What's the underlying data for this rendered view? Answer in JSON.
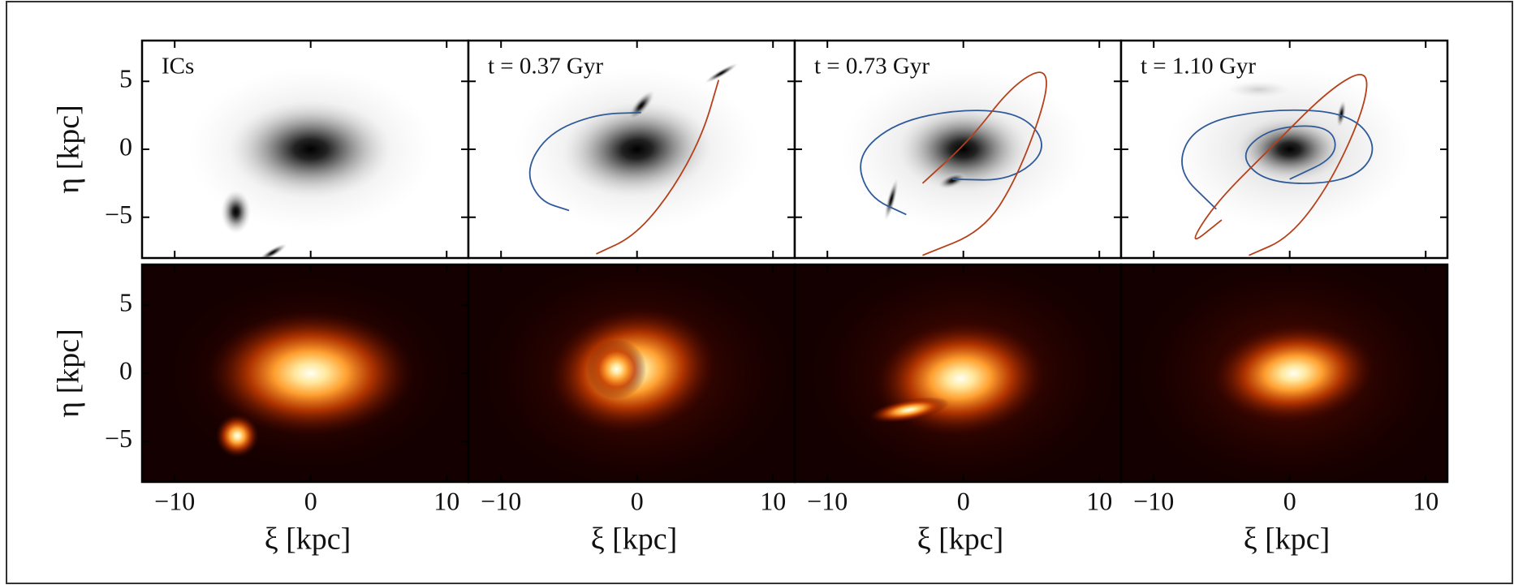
{
  "chart_data": [
    {
      "type": "image",
      "colormap": "gray",
      "annotation": "ICs",
      "ylabel": "η [kpc]",
      "xlim": [
        -12.4,
        11.6
      ],
      "ylim": [
        -8,
        8
      ],
      "xticks": [
        -10,
        0,
        10
      ],
      "yticks": [
        {
          "value": -5,
          "label": "−5"
        },
        0,
        5
      ],
      "show_xtick_labels": false,
      "show_ytick_labels": true
    },
    {
      "type": "image",
      "colormap": "gray",
      "annotation": "t = 0.37 Gyr",
      "xlim": [
        -12.4,
        11.6
      ],
      "ylim": [
        -8,
        8
      ],
      "xticks": [
        -10,
        0,
        10
      ],
      "yticks": [
        -5,
        0,
        5
      ],
      "show_xtick_labels": false,
      "show_ytick_labels": false
    },
    {
      "type": "image",
      "colormap": "gray",
      "annotation": "t = 0.73 Gyr",
      "xlim": [
        -12.4,
        11.6
      ],
      "ylim": [
        -8,
        8
      ],
      "xticks": [
        -10,
        0,
        10
      ],
      "yticks": [
        -5,
        0,
        5
      ],
      "show_xtick_labels": false,
      "show_ytick_labels": false
    },
    {
      "type": "image",
      "colormap": "gray",
      "annotation": "t = 1.10 Gyr",
      "xlim": [
        -12.4,
        11.6
      ],
      "ylim": [
        -8,
        8
      ],
      "xticks": [
        -10,
        0,
        10
      ],
      "yticks": [
        -5,
        0,
        5
      ],
      "show_xtick_labels": false,
      "show_ytick_labels": false
    },
    {
      "type": "image",
      "colormap": "hot",
      "ylabel": "η [kpc]",
      "xlabel": "ξ [kpc]",
      "xlim": [
        -12.4,
        11.6
      ],
      "ylim": [
        -8,
        8
      ],
      "xticks": [
        {
          "value": -10,
          "label": "−10"
        },
        0,
        10
      ],
      "yticks": [
        {
          "value": -5,
          "label": "−5"
        },
        0,
        5
      ],
      "show_xtick_labels": true,
      "show_ytick_labels": true
    },
    {
      "type": "image",
      "colormap": "hot",
      "xlabel": "ξ [kpc]",
      "xlim": [
        -12.4,
        11.6
      ],
      "ylim": [
        -8,
        8
      ],
      "xticks": [
        {
          "value": -10,
          "label": "−10"
        },
        0,
        10
      ],
      "show_xtick_labels": true,
      "show_ytick_labels": false
    },
    {
      "type": "image",
      "colormap": "hot",
      "xlabel": "ξ [kpc]",
      "xlim": [
        -12.4,
        11.6
      ],
      "ylim": [
        -8,
        8
      ],
      "xticks": [
        {
          "value": -10,
          "label": "−10"
        },
        0,
        10
      ],
      "show_xtick_labels": true,
      "show_ytick_labels": false
    },
    {
      "type": "image",
      "colormap": "hot",
      "xlabel": "ξ [kpc]",
      "xlim": [
        -12.4,
        11.6
      ],
      "ylim": [
        -8,
        8
      ],
      "xticks": [
        {
          "value": -10,
          "label": "−10"
        },
        0,
        10
      ],
      "show_xtick_labels": true,
      "show_ytick_labels": false
    }
  ]
}
